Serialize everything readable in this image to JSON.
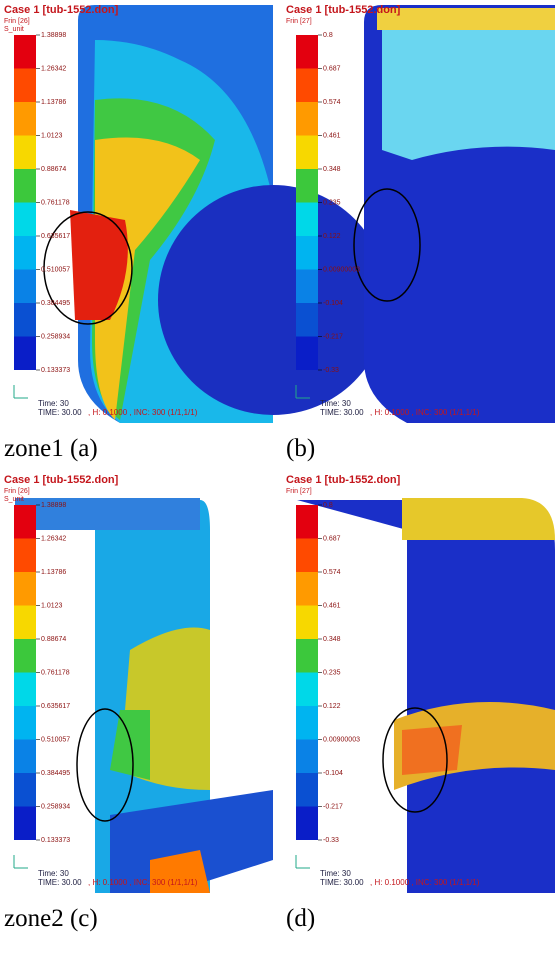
{
  "panels": [
    {
      "title": "Case 1  [tub-1552.don]",
      "result": "Frin [26]",
      "unit": "S_unit",
      "legend": [
        "1.38898",
        "1.26342",
        "1.13786",
        "1.0123",
        "0.88674",
        "0.761178",
        "0.635617",
        "0.510057",
        "0.384495",
        "0.258934",
        "0.133373"
      ],
      "time": "Time: 30",
      "time_full": "TIME:  30.00",
      "step": ", H: 0.1000 , INC:  300 (1/1,1/1)",
      "caption": "zone1 (a)"
    },
    {
      "title": "Case 1  [tub-1552.don]",
      "result": "Frin [27]",
      "legend": [
        "0.8",
        "0.687",
        "0.574",
        "0.461",
        "0.348",
        "0.235",
        "0.122",
        "0.00900003",
        "-0.104",
        "-0.217",
        "-0.33"
      ],
      "time": "Time: 30",
      "time_full": "TIME:  30.00",
      "step": ", H: 0.1000 , INC:  300 (1/1,1/1)",
      "caption": "(b)"
    },
    {
      "title": "Case 1  [tub-1552.don]",
      "result": "Frin [26]",
      "unit": "S_unit",
      "legend": [
        "1.38898",
        "1.26342",
        "1.13786",
        "1.0123",
        "0.88674",
        "0.761178",
        "0.635617",
        "0.510057",
        "0.384495",
        "0.258934",
        "0.133373"
      ],
      "time": "Time: 30",
      "time_full": "TIME:  30.00",
      "step": ", H: 0.1000 , INC:  300 (1/1,1/1)",
      "caption": "zone2 (c)"
    },
    {
      "title": "Case 1  [tub-1552.don]",
      "result": "Frin [27]",
      "legend": [
        "0.8",
        "0.687",
        "0.574",
        "0.461",
        "0.348",
        "0.235",
        "0.122",
        "0.00900003",
        "-0.104",
        "-0.217",
        "-0.33"
      ],
      "time": "Time: 30",
      "time_full": "TIME:  30.00",
      "step": ", H: 0.1000 , INC:  300 (1/1,1/1)",
      "caption": "(d)"
    }
  ]
}
